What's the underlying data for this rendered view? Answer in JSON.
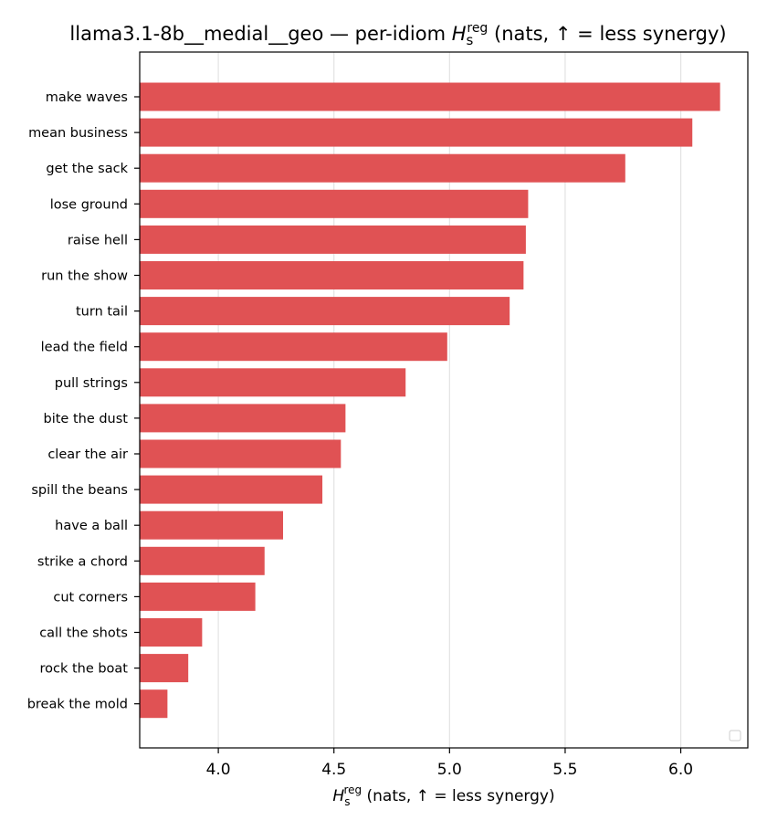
{
  "chart_data": {
    "type": "bar",
    "orientation": "horizontal",
    "title_prefix": "llama3.1-8b__medial__geo — per-idiom ",
    "title_suffix": " (nats, ↑ = less synergy)",
    "symbol": {
      "base": "H",
      "subscript": "s",
      "superscript": "reg"
    },
    "xlabel_suffix": " (nats, ↑ = less synergy)",
    "categories": [
      "make waves",
      "mean business",
      "get the sack",
      "lose ground",
      "raise hell",
      "run the show",
      "turn tail",
      "lead the field",
      "pull strings",
      "bite the dust",
      "clear the air",
      "spill the beans",
      "have a ball",
      "strike a chord",
      "cut corners",
      "call the shots",
      "rock the boat",
      "break the mold"
    ],
    "values": [
      6.17,
      6.05,
      5.76,
      5.34,
      5.33,
      5.32,
      5.26,
      4.99,
      4.81,
      4.55,
      4.53,
      4.45,
      4.28,
      4.2,
      4.16,
      3.93,
      3.87,
      3.78
    ],
    "xlim": [
      3.66,
      6.29
    ],
    "xticks": [
      "4.0",
      "4.5",
      "5.0",
      "5.5",
      "6.0"
    ],
    "grid": "x",
    "legend": "bottom-right",
    "bar_color": "#e05254"
  }
}
